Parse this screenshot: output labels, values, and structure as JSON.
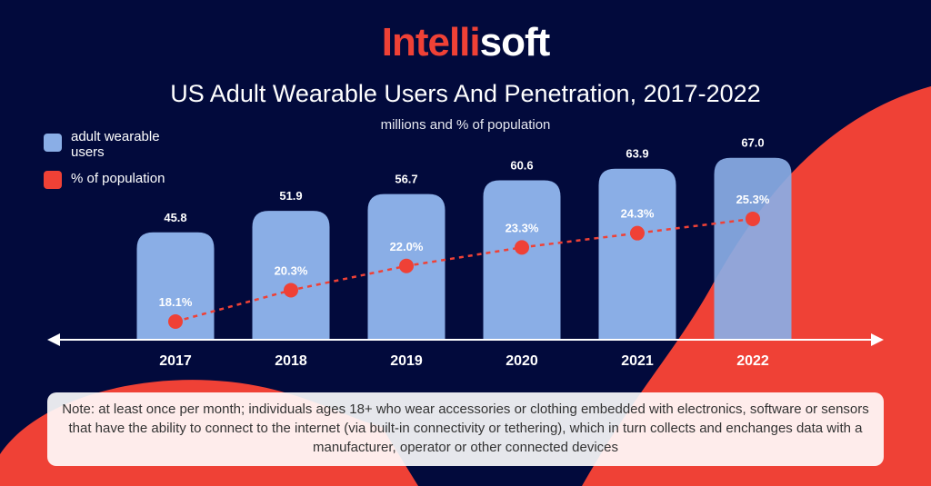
{
  "logo": {
    "part1": "Intelli",
    "part2": "soft"
  },
  "colors": {
    "background": "#020a3c",
    "accent": "#ef4136",
    "bars": "#8aaee6",
    "points": "#ef4136"
  },
  "chart_data": {
    "type": "bar+line",
    "title": "US Adult Wearable Users And Penetration, 2017-2022",
    "subtitle": "millions and % of population",
    "categories": [
      "2017",
      "2018",
      "2019",
      "2020",
      "2021",
      "2022"
    ],
    "series": [
      {
        "name": "adult wearable users",
        "type": "bar",
        "values": [
          45.8,
          51.9,
          56.7,
          60.6,
          63.9,
          67.0
        ],
        "labels": [
          "45.8",
          "51.9",
          "56.7",
          "60.6",
          "63.9",
          "67.0"
        ]
      },
      {
        "name": "% of population",
        "type": "line",
        "style": "dashed",
        "values": [
          18.1,
          20.3,
          22.0,
          23.3,
          24.3,
          25.3
        ],
        "labels": [
          "18.1%",
          "20.3%",
          "22.0%",
          "23.3%",
          "24.3%",
          "25.3%"
        ]
      }
    ],
    "legend": "top-left",
    "grid": false
  },
  "note": "Note: at least once per month; individuals ages 18+ who wear accessories or clothing embedded with electronics, software or sensors that have the ability to connect to the internet (via built-in connectivity or tethering), which in turn collects and enchanges data with a manufacturer, operator or other connected devices"
}
